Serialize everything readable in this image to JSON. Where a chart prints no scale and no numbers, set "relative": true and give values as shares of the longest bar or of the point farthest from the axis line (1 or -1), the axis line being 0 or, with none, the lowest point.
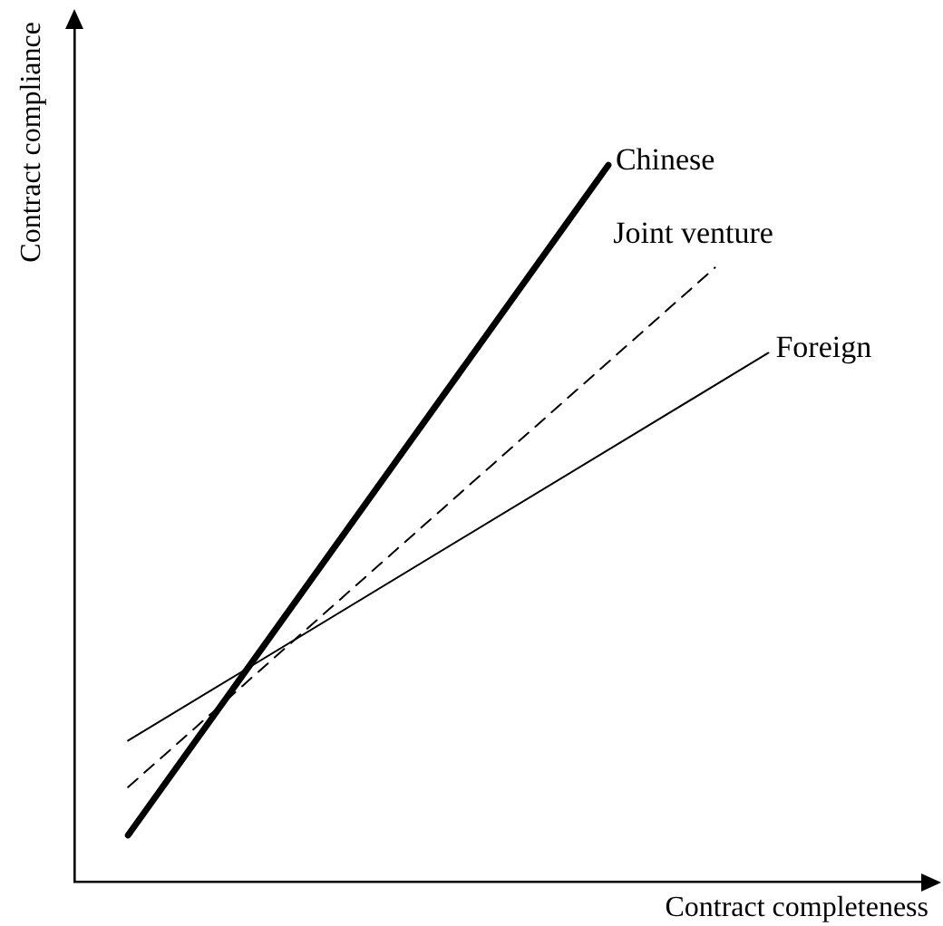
{
  "chart_data": {
    "type": "line",
    "relative": true,
    "xlabel": "Contract completeness",
    "ylabel": "Contract compliance",
    "grid": false,
    "legend": false,
    "marker": "none",
    "categories": [
      null,
      null,
      null,
      null,
      null,
      null,
      null,
      null,
      null,
      null,
      null,
      null,
      null,
      null,
      null,
      null,
      null
    ],
    "series": [
      {
        "name": "Chinese",
        "color": "#000000",
        "values": [
          null,
          0.065,
          null,
          null,
          null,
          null,
          null,
          null,
          null,
          null,
          1,
          null,
          null,
          null,
          null,
          null,
          null
        ],
        "line_style": "solid"
      },
      {
        "name": "Joint venture",
        "color": "#000000",
        "values": [
          null,
          0.132,
          null,
          null,
          null,
          null,
          null,
          null,
          null,
          null,
          null,
          null,
          0.857,
          null,
          null,
          null,
          null
        ],
        "line_style": "dashed"
      },
      {
        "name": "Foreign",
        "color": "#000000",
        "values": [
          null,
          0.197,
          null,
          null,
          null,
          null,
          null,
          null,
          null,
          null,
          null,
          null,
          null,
          0.738,
          null,
          null,
          null
        ],
        "line_style": "solid"
      }
    ]
  }
}
